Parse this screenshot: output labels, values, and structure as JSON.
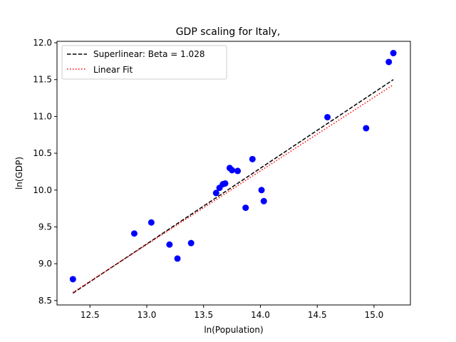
{
  "chart_data": {
    "type": "scatter",
    "title": "GDP scaling for Italy,",
    "xlabel": "ln(Population)",
    "ylabel": "ln(GDP)",
    "xlim": [
      12.21,
      15.32
    ],
    "ylim": [
      8.44,
      12.02
    ],
    "xticks": [
      12.5,
      13.0,
      13.5,
      14.0,
      14.5,
      15.0
    ],
    "xtick_labels": [
      "12.5",
      "13.0",
      "13.5",
      "14.0",
      "14.5",
      "15.0"
    ],
    "yticks": [
      8.5,
      9.0,
      9.5,
      10.0,
      10.5,
      11.0,
      11.5,
      12.0
    ],
    "ytick_labels": [
      "8.5",
      "9.0",
      "9.5",
      "10.0",
      "10.5",
      "11.0",
      "11.5",
      "12.0"
    ],
    "grid": false,
    "legend_position": "upper-left",
    "series": [
      {
        "name": "Superlinear: Beta = 1.028",
        "kind": "line",
        "style": "dashed",
        "color": "#000000",
        "x": [
          12.35,
          15.17
        ],
        "y": [
          8.6,
          11.5
        ]
      },
      {
        "name": "Linear Fit",
        "kind": "line",
        "style": "dotted",
        "color": "#ff0000",
        "x": [
          12.35,
          15.17
        ],
        "y": [
          8.61,
          11.43
        ]
      },
      {
        "kind": "scatter",
        "color": "#0000ff",
        "x": [
          12.35,
          12.89,
          13.04,
          13.2,
          13.27,
          13.39,
          13.61,
          13.64,
          13.67,
          13.69,
          13.73,
          13.75,
          13.8,
          13.87,
          13.93,
          14.01,
          14.03,
          14.59,
          14.93,
          15.13,
          15.17
        ],
        "y": [
          8.79,
          9.41,
          9.56,
          9.26,
          9.07,
          9.28,
          9.96,
          10.03,
          10.08,
          10.09,
          10.3,
          10.27,
          10.26,
          9.76,
          10.42,
          10.0,
          9.85,
          10.99,
          10.84,
          11.74,
          11.86
        ]
      }
    ]
  }
}
